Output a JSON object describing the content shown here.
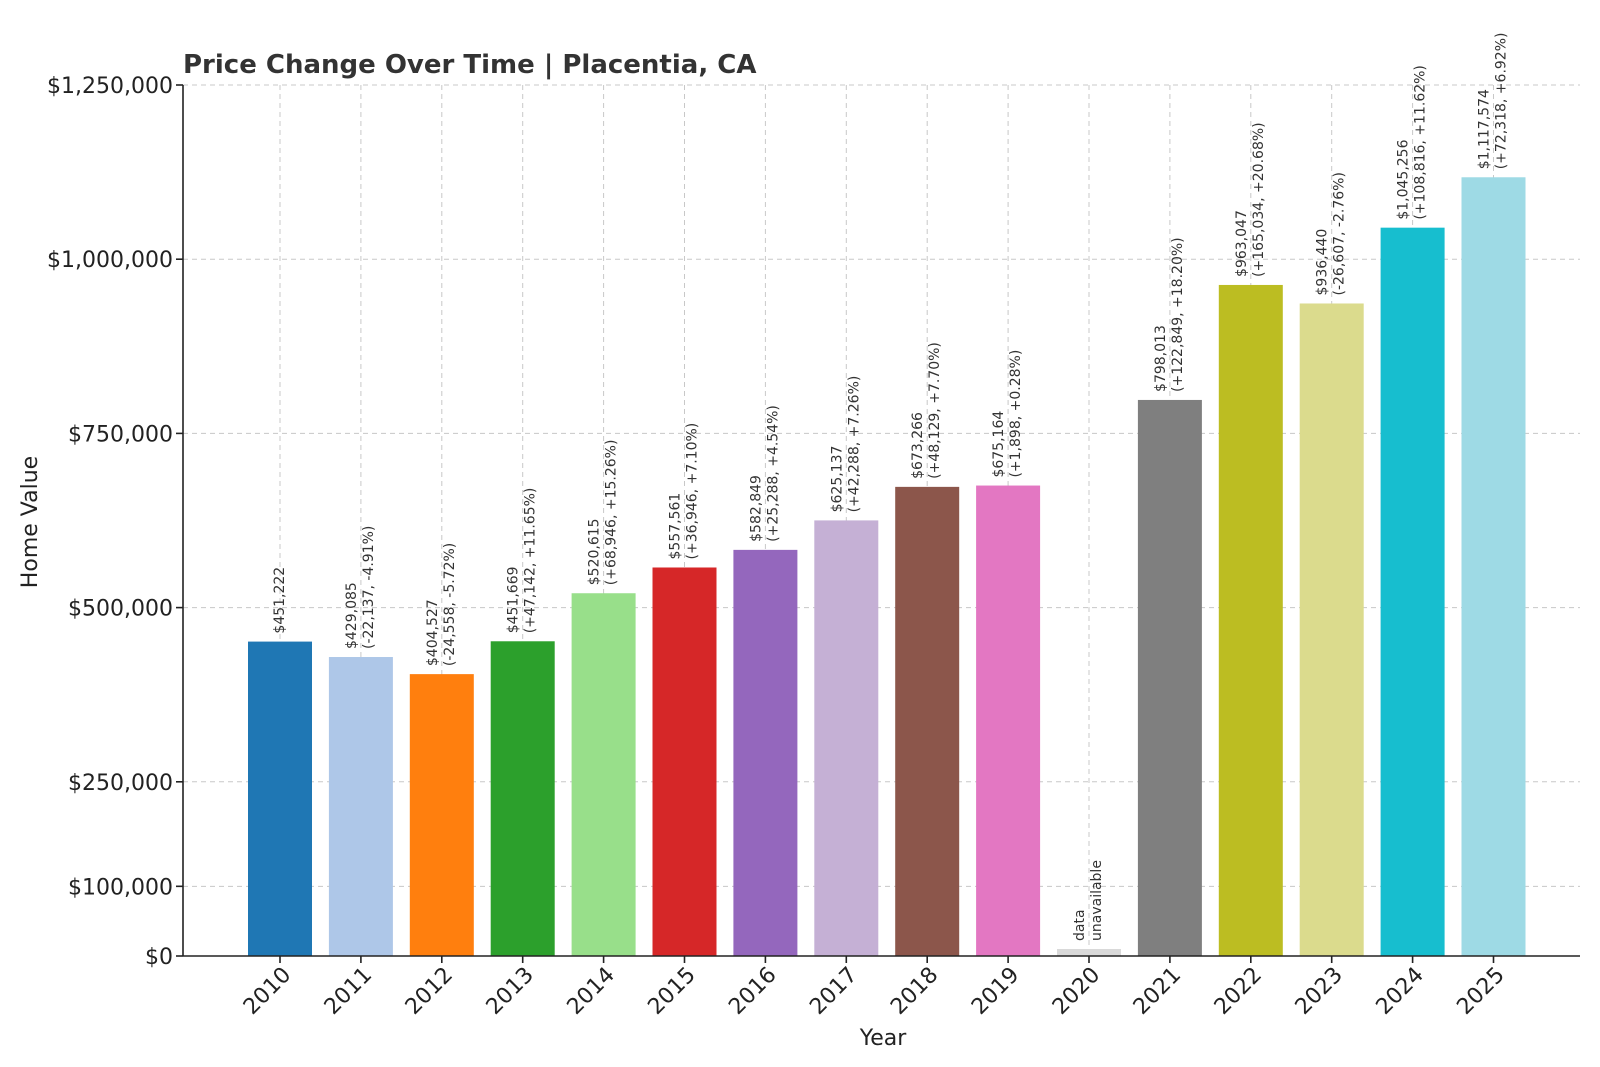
{
  "chart_data": {
    "type": "bar",
    "title": "Price Change Over Time | Placentia, CA",
    "xlabel": "Year",
    "ylabel": "Home Value",
    "grid": true,
    "ylim": [
      0,
      1250000
    ],
    "yticks": [
      0,
      100000,
      250000,
      500000,
      750000,
      1000000,
      1250000
    ],
    "ytick_labels": [
      "$0",
      "$100,000",
      "$250,000",
      "$500,000",
      "$750,000",
      "$1,000,000",
      "$1,250,000"
    ],
    "categories": [
      "2010",
      "2011",
      "2012",
      "2013",
      "2014",
      "2015",
      "2016",
      "2017",
      "2018",
      "2019",
      "2020",
      "2021",
      "2022",
      "2023",
      "2024",
      "2025"
    ],
    "values": [
      451222,
      429085,
      404527,
      451669,
      520615,
      557561,
      582849,
      625137,
      673266,
      675164,
      null,
      798013,
      963047,
      936440,
      1045256,
      1117574
    ],
    "colors": [
      "#1f77b4",
      "#aec7e8",
      "#ff7f0e",
      "#2ca02c",
      "#98df8a",
      "#d62728",
      "#9467bd",
      "#c5b0d5",
      "#8c564b",
      "#e377c2",
      "#d9d9d9",
      "#7f7f7f",
      "#bcbd22",
      "#dbdb8d",
      "#17becf",
      "#9edae5"
    ],
    "data_labels": [
      [
        "$451,222"
      ],
      [
        "$429,085",
        "(-22,137, -4.91%)"
      ],
      [
        "$404,527",
        "(-24,558, -5.72%)"
      ],
      [
        "$451,669",
        "(+47,142, +11.65%)"
      ],
      [
        "$520,615",
        "(+68,946, +15.26%)"
      ],
      [
        "$557,561",
        "(+36,946, +7.10%)"
      ],
      [
        "$582,849",
        "(+25,288, +4.54%)"
      ],
      [
        "$625,137",
        "(+42,288, +7.26%)"
      ],
      [
        "$673,266",
        "(+48,129, +7.70%)"
      ],
      [
        "$675,164",
        "(+1,898, +0.28%)"
      ],
      [
        "data",
        "unavailable"
      ],
      [
        "$798,013",
        "(+122,849, +18.20%)"
      ],
      [
        "$963,047",
        "(+165,034, +20.68%)"
      ],
      [
        "$936,440",
        "(-26,607, -2.76%)"
      ],
      [
        "$1,045,256",
        "(+108,816, +11.62%)"
      ],
      [
        "$1,117,574",
        "(+72,318, +6.92%)"
      ]
    ]
  }
}
